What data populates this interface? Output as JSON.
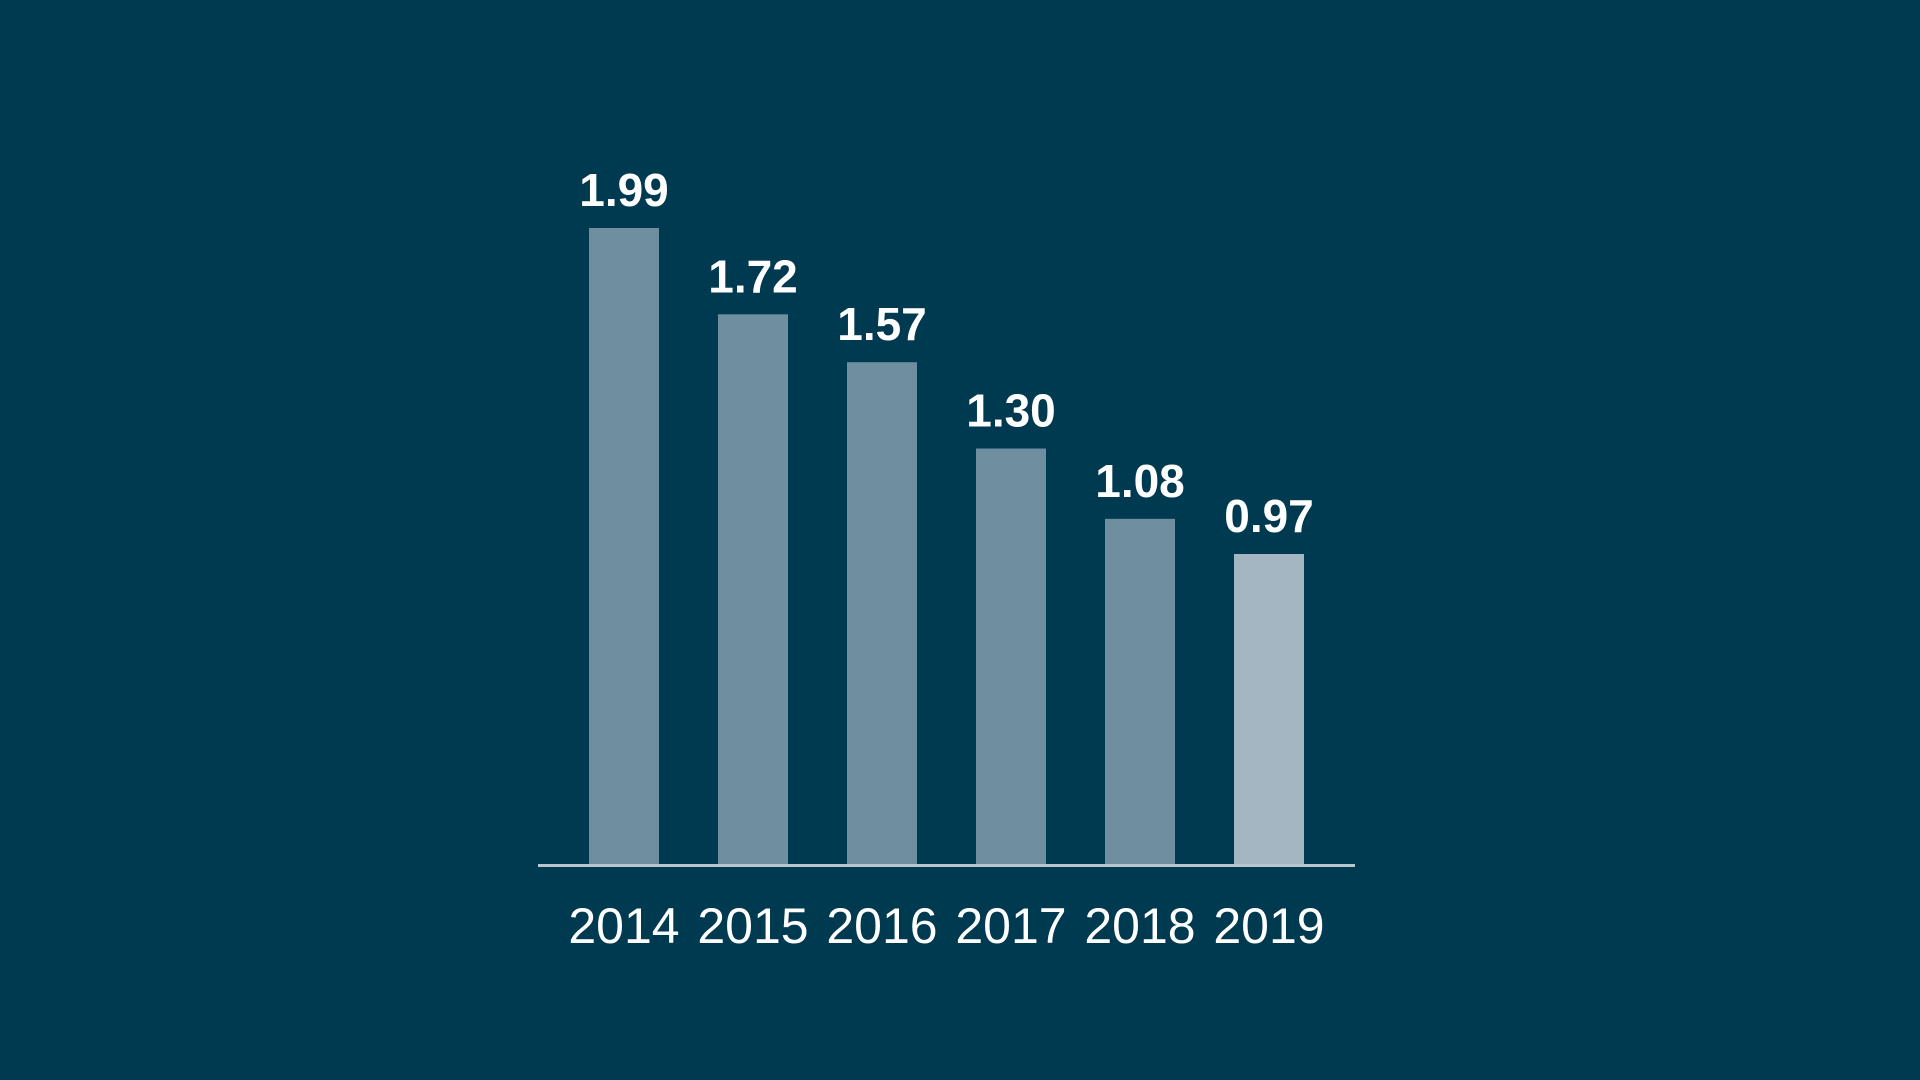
{
  "chart_data": {
    "type": "bar",
    "categories": [
      "2014",
      "2015",
      "2016",
      "2017",
      "2018",
      "2019"
    ],
    "values": [
      1.99,
      1.72,
      1.57,
      1.3,
      1.08,
      0.97
    ],
    "value_labels": [
      "1.99",
      "1.72",
      "1.57",
      "1.30",
      "1.08",
      "0.97"
    ],
    "title": "",
    "xlabel": "",
    "ylabel": "",
    "ylim": [
      0,
      1.99
    ],
    "grid": false,
    "legend": "none",
    "colors": {
      "background": "#003a50",
      "bar": "#6f8fa0",
      "bar_highlight": "#a4b6c2",
      "axis": "#b8c6cf",
      "text": "#ffffff"
    },
    "highlight_index": 5
  }
}
